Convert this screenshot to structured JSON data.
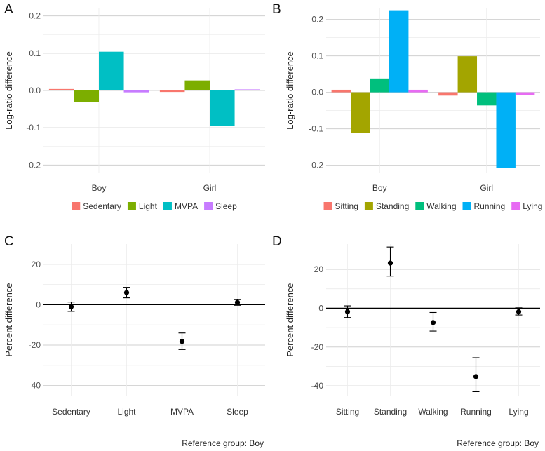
{
  "chart_data": [
    {
      "panel": "A",
      "type": "bar",
      "ylabel": "Log-ratio difference",
      "ylim": [
        -0.22,
        0.22
      ],
      "yticks": [
        0.2,
        0.1,
        0.0,
        -0.1,
        -0.2
      ],
      "ytick_labels": [
        "0.2",
        "0.1",
        "0.0",
        "-0.1",
        "-0.2"
      ],
      "categories": [
        "Boy",
        "Girl"
      ],
      "series": [
        {
          "name": "Sedentary",
          "color": "#F8766D",
          "values": [
            0.004,
            -0.004
          ]
        },
        {
          "name": "Light",
          "color": "#7CAE00",
          "values": [
            -0.031,
            0.027
          ]
        },
        {
          "name": "MVPA",
          "color": "#00BFC4",
          "values": [
            0.104,
            -0.095
          ]
        },
        {
          "name": "Sleep",
          "color": "#C77CFF",
          "values": [
            -0.005,
            0.003
          ]
        }
      ],
      "legend_position": "bottom"
    },
    {
      "panel": "B",
      "type": "bar",
      "ylabel": "Log-ratio difference",
      "ylim": [
        -0.22,
        0.23
      ],
      "yticks": [
        0.2,
        0.1,
        0.0,
        -0.1,
        -0.2
      ],
      "ytick_labels": [
        "0.2",
        "0.1",
        "0.0",
        "-0.1",
        "-0.2"
      ],
      "categories": [
        "Boy",
        "Girl"
      ],
      "series": [
        {
          "name": "Sitting",
          "color": "#F8766D",
          "values": [
            0.007,
            -0.009
          ]
        },
        {
          "name": "Standing",
          "color": "#A3A500",
          "values": [
            -0.112,
            0.099
          ]
        },
        {
          "name": "Walking",
          "color": "#00BF7D",
          "values": [
            0.038,
            -0.036
          ]
        },
        {
          "name": "Running",
          "color": "#00B0F6",
          "values": [
            0.225,
            -0.207
          ]
        },
        {
          "name": "Lying",
          "color": "#E76BF3",
          "values": [
            0.007,
            -0.008
          ]
        }
      ],
      "legend_position": "bottom"
    },
    {
      "panel": "C",
      "type": "scatter",
      "ylabel": "Percent difference",
      "ylim": [
        -45,
        30
      ],
      "yticks": [
        20,
        0,
        -20,
        -40
      ],
      "ytick_labels": [
        "20",
        "0",
        "-20",
        "-40"
      ],
      "categories": [
        "Sedentary",
        "Light",
        "MVPA",
        "Sleep"
      ],
      "points": [
        {
          "label": "Sedentary",
          "value": -1.0,
          "lower": -3.3,
          "upper": 1.3
        },
        {
          "label": "Light",
          "value": 6.0,
          "lower": 3.4,
          "upper": 8.6
        },
        {
          "label": "MVPA",
          "value": -18.2,
          "lower": -22.2,
          "upper": -14.0
        },
        {
          "label": "Sleep",
          "value": 1.1,
          "lower": -0.3,
          "upper": 2.5
        }
      ],
      "caption": "Reference group: Boy"
    },
    {
      "panel": "D",
      "type": "scatter",
      "ylabel": "Percent difference",
      "ylim": [
        -45,
        33
      ],
      "yticks": [
        20,
        0,
        -20,
        -40
      ],
      "ytick_labels": [
        "20",
        "0",
        "-20",
        "-40"
      ],
      "categories": [
        "Sitting",
        "Standing",
        "Walking",
        "Running",
        "Lying"
      ],
      "points": [
        {
          "label": "Sitting",
          "value": -1.8,
          "lower": -4.8,
          "upper": 1.2
        },
        {
          "label": "Standing",
          "value": 23.2,
          "lower": 16.5,
          "upper": 31.5
        },
        {
          "label": "Walking",
          "value": -7.4,
          "lower": -11.8,
          "upper": -2.2
        },
        {
          "label": "Running",
          "value": -35.2,
          "lower": -43.0,
          "upper": -25.5
        },
        {
          "label": "Lying",
          "value": -1.8,
          "lower": -3.5,
          "upper": 0.2
        }
      ],
      "caption": "Reference group: Boy"
    }
  ]
}
